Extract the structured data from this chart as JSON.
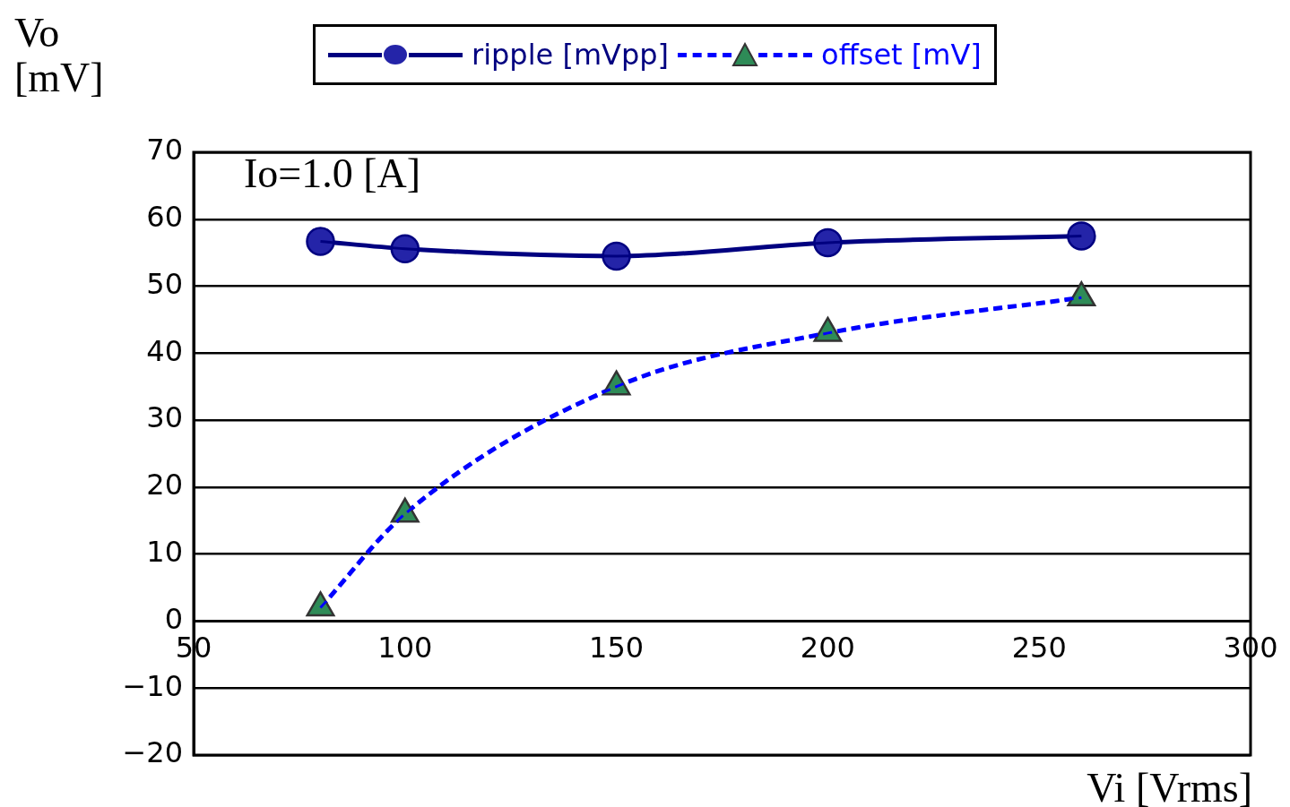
{
  "chart_data": {
    "type": "line",
    "ylabel": "Vo\n[mV]",
    "xlabel": "Vi [Vrms]",
    "annotations": [
      "Io=1.0 [A]"
    ],
    "x": [
      80,
      100,
      150,
      200,
      260
    ],
    "series": [
      {
        "name": "ripple [mVpp]",
        "color": "#000080",
        "colors": [
          "#2424a8",
          "#2424a8",
          "#2424a8",
          "#2424a8",
          "#2424a8"
        ],
        "values": [
          56.7,
          55.6,
          54.5,
          56.5,
          57.5
        ],
        "marker": "circle",
        "line_style": "solid"
      },
      {
        "name": "offset [mV]",
        "color": "#0000ff",
        "colors": [
          "#2e8b57",
          "#2e8b57",
          "#2e8b57",
          "#2e8b57",
          "#2e8b57"
        ],
        "values": [
          2,
          16,
          35,
          43,
          48.3
        ],
        "marker": "triangle",
        "line_style": "dashed"
      }
    ],
    "xlim": [
      50,
      300
    ],
    "xticks": [
      50,
      100,
      150,
      200,
      250,
      300
    ],
    "ylim": [
      -20,
      70
    ],
    "yticks": [
      -20,
      -10,
      0,
      10,
      20,
      30,
      40,
      50,
      60,
      70
    ],
    "grid": "y",
    "legend": "top"
  }
}
